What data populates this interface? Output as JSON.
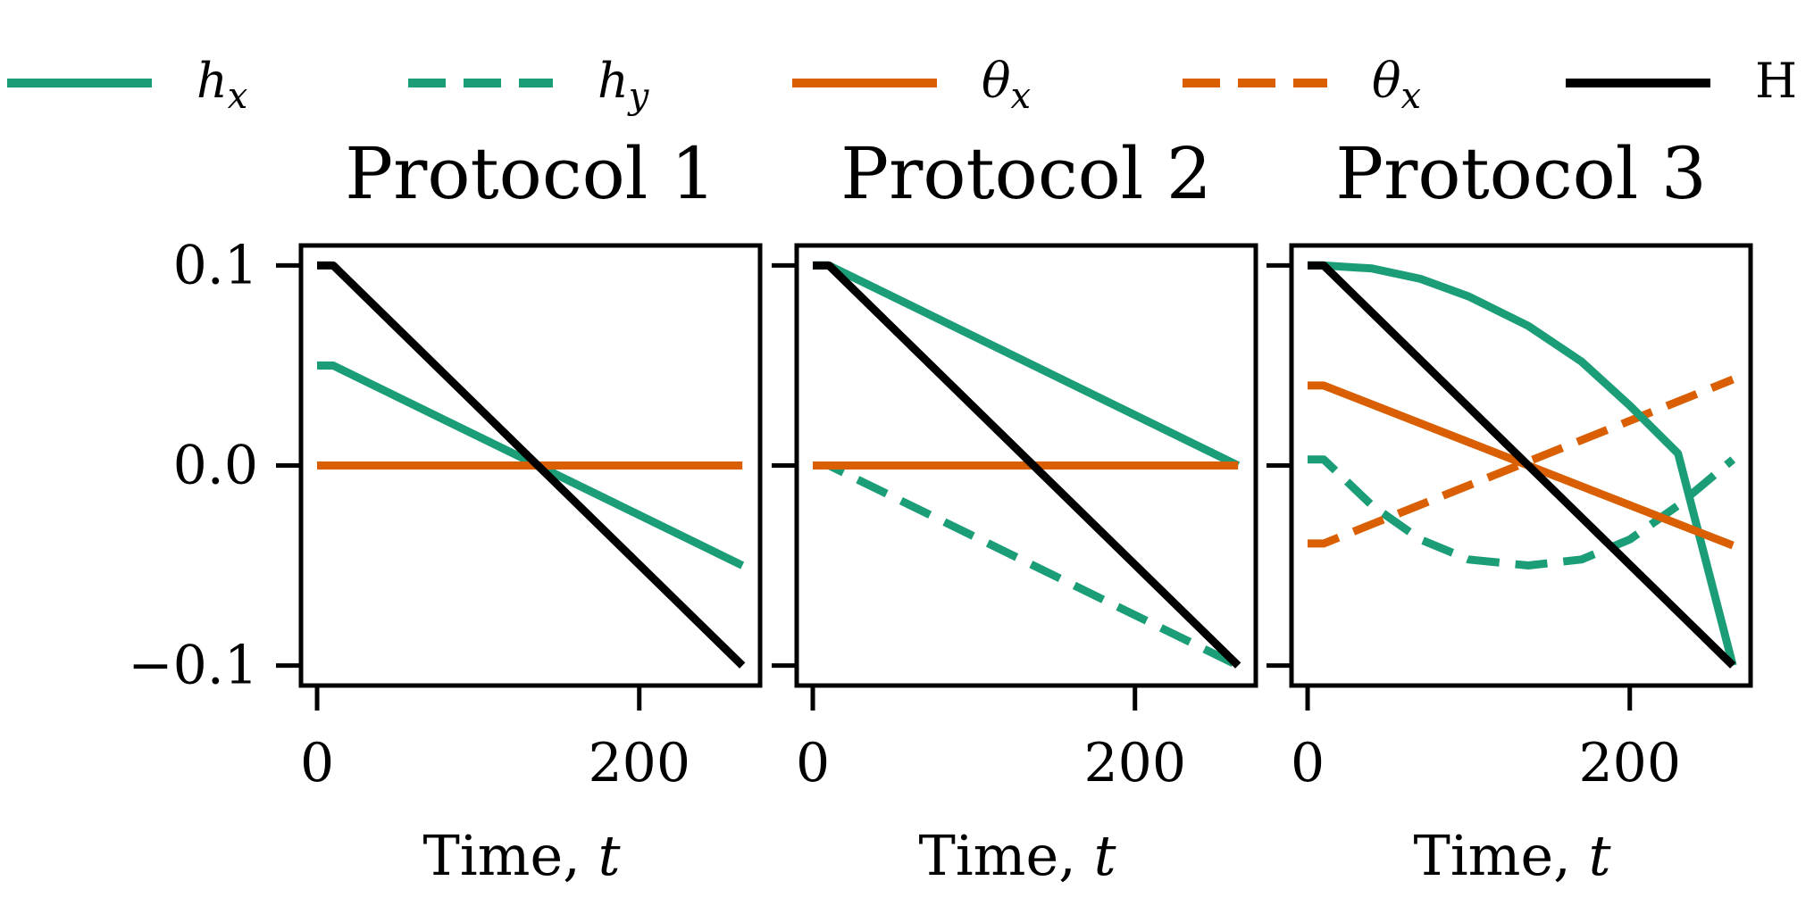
{
  "colors": {
    "green": "#1b9e77",
    "orange": "#d95f02",
    "black": "#000000",
    "protocol1": "#17becf",
    "protocol2": "#bcbd22",
    "protocol3": "#c71bc7"
  },
  "legend": [
    {
      "key": "hx",
      "base": "h",
      "sub": "x",
      "color": "green",
      "dash": false
    },
    {
      "key": "hy",
      "base": "h",
      "sub": "y",
      "color": "green",
      "dash": true
    },
    {
      "key": "thx",
      "base": "θ",
      "sub": "x",
      "color": "orange",
      "dash": false
    },
    {
      "key": "thy",
      "base": "θ",
      "sub": "x",
      "color": "orange",
      "dash": true
    },
    {
      "key": "H",
      "text": "H",
      "color": "black",
      "dash": false
    }
  ],
  "chart_data": [
    {
      "type": "line",
      "title": "Protocol 1",
      "title_color": "protocol1",
      "xlabel_text": "Time, ",
      "xlabel_var": "t",
      "xticks": [
        "0",
        "200"
      ],
      "xtick_values": [
        0,
        200
      ],
      "yticks": [
        "0.1",
        "0.0",
        "−0.1"
      ],
      "ytick_values": [
        0.1,
        0.0,
        -0.1
      ],
      "xlim": [
        -10,
        275
      ],
      "ylim": [
        -0.11,
        0.11
      ],
      "series": [
        {
          "key": "hx",
          "x": [
            0,
            10,
            264
          ],
          "y": [
            0.05,
            0.05,
            -0.05
          ]
        },
        {
          "key": "hy",
          "x": [
            0,
            10,
            264
          ],
          "y": [
            0.0,
            0.0,
            0.0
          ]
        },
        {
          "key": "thx",
          "x": [
            0,
            10,
            264
          ],
          "y": [
            0.0,
            0.0,
            0.0
          ]
        },
        {
          "key": "thy",
          "x": [
            0,
            10,
            264
          ],
          "y": [
            0.0,
            0.0,
            0.0
          ]
        },
        {
          "key": "H",
          "x": [
            0,
            10,
            264
          ],
          "y": [
            0.1,
            0.1,
            -0.1
          ]
        }
      ]
    },
    {
      "type": "line",
      "title": "Protocol 2",
      "title_color": "protocol2",
      "xlabel_text": "Time, ",
      "xlabel_var": "t",
      "xticks": [
        "0",
        "200"
      ],
      "xtick_values": [
        0,
        200
      ],
      "yticks": [],
      "ytick_values": [
        0.1,
        0.0,
        -0.1
      ],
      "xlim": [
        -10,
        275
      ],
      "ylim": [
        -0.11,
        0.11
      ],
      "series": [
        {
          "key": "hx",
          "x": [
            0,
            10,
            264
          ],
          "y": [
            0.1,
            0.1,
            0.0
          ]
        },
        {
          "key": "hy",
          "x": [
            0,
            10,
            264
          ],
          "y": [
            0.0,
            0.0,
            -0.1
          ]
        },
        {
          "key": "thx",
          "x": [
            0,
            10,
            264
          ],
          "y": [
            0.0,
            0.0,
            0.0
          ]
        },
        {
          "key": "thy",
          "x": [
            0,
            10,
            264
          ],
          "y": [
            0.0,
            0.0,
            0.0
          ]
        },
        {
          "key": "H",
          "x": [
            0,
            10,
            264
          ],
          "y": [
            0.1,
            0.1,
            -0.1
          ]
        }
      ]
    },
    {
      "type": "line",
      "title": "Protocol 3",
      "title_color": "protocol3",
      "xlabel_text": "Time, ",
      "xlabel_var": "t",
      "xticks": [
        "0",
        "200"
      ],
      "xtick_values": [
        0,
        200
      ],
      "yticks": [],
      "ytick_values": [
        0.1,
        0.0,
        -0.1
      ],
      "xlim": [
        -10,
        275
      ],
      "ylim": [
        -0.11,
        0.11
      ],
      "series": [
        {
          "key": "hx",
          "x": [
            0,
            10,
            40,
            70,
            100,
            137,
            170,
            200,
            230,
            264
          ],
          "y": [
            0.1,
            0.1,
            0.0985,
            0.0933,
            0.0845,
            0.0698,
            0.052,
            0.03,
            0.006,
            -0.1
          ]
        },
        {
          "key": "hy",
          "x": [
            0,
            10,
            40,
            70,
            100,
            137,
            170,
            200,
            230,
            264
          ],
          "y": [
            0.003,
            0.003,
            -0.02,
            -0.037,
            -0.047,
            -0.05,
            -0.047,
            -0.037,
            -0.02,
            0.003
          ]
        },
        {
          "key": "thx",
          "x": [
            0,
            10,
            264
          ],
          "y": [
            0.04,
            0.04,
            -0.04
          ]
        },
        {
          "key": "thy",
          "x": [
            0,
            10,
            264
          ],
          "y": [
            -0.039,
            -0.039,
            0.043
          ]
        },
        {
          "key": "H",
          "x": [
            0,
            10,
            264
          ],
          "y": [
            0.1,
            0.1,
            -0.1
          ]
        }
      ]
    }
  ]
}
